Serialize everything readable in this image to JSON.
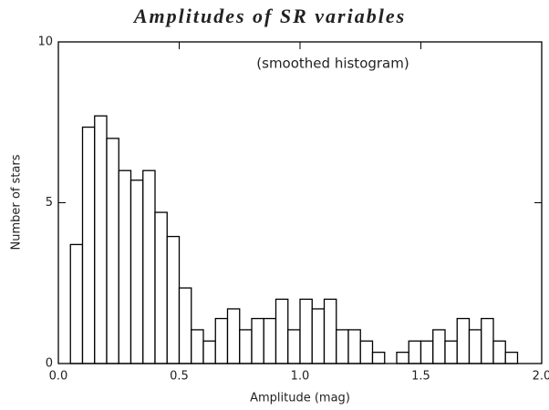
{
  "chart_data": {
    "type": "histogram",
    "title": "Amplitudes of SR variables",
    "annotation": "(smoothed histogram)",
    "xlabel": "Amplitude (mag)",
    "ylabel": "Number of stars",
    "bins": [
      0.05,
      0.1,
      0.15,
      0.2,
      0.25,
      0.3,
      0.35,
      0.4,
      0.45,
      0.5,
      0.55,
      0.6,
      0.65,
      0.7,
      0.75,
      0.8,
      0.85,
      0.9,
      0.95,
      1.0,
      1.05,
      1.1,
      1.15,
      1.2,
      1.25,
      1.3,
      1.35,
      1.4,
      1.45,
      1.5,
      1.55,
      1.6,
      1.65,
      1.7,
      1.75,
      1.8,
      1.85,
      1.9
    ],
    "values": [
      3.7,
      7.35,
      7.7,
      7.0,
      6.0,
      5.7,
      6.0,
      4.7,
      3.95,
      2.35,
      1.05,
      0.7,
      1.4,
      1.7,
      1.05,
      1.4,
      1.4,
      2.0,
      1.05,
      2.0,
      1.7,
      2.0,
      1.05,
      1.05,
      0.7,
      0.35,
      0,
      0.35,
      0.7,
      0.7,
      1.05,
      0.7,
      1.4,
      1.05,
      1.4,
      0.7,
      0.35
    ],
    "color": "#ffffff",
    "edgecolor": "#000000",
    "xlim": [
      0,
      2
    ],
    "ylim": [
      0,
      10
    ],
    "xticks": [
      {
        "value": 0,
        "label": "0.0"
      },
      0.5,
      {
        "value": 1,
        "label": "1.0"
      },
      1.5,
      {
        "value": 2,
        "label": "2.0"
      }
    ],
    "yticks": [
      0,
      5,
      10
    ]
  }
}
